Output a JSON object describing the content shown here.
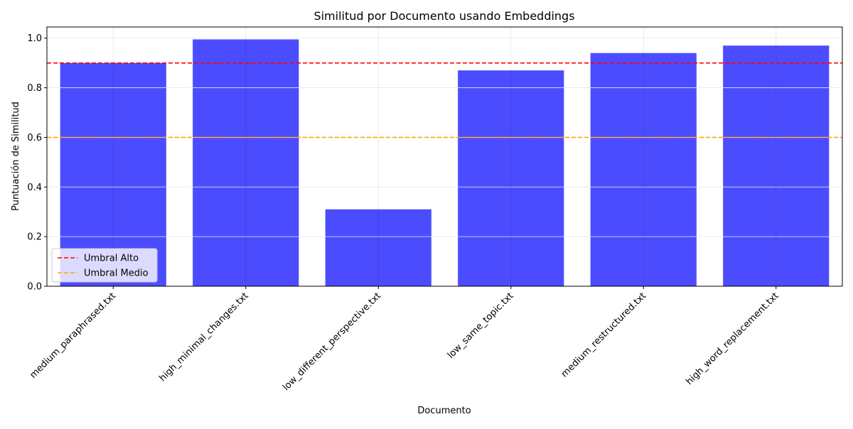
{
  "chart_data": {
    "type": "bar",
    "title": "Similitud por Documento usando Embeddings",
    "xlabel": "Documento",
    "ylabel": "Puntuación de Similitud",
    "categories": [
      "medium_paraphrased.txt",
      "high_minimal_changes.txt",
      "low_different_perspective.txt",
      "low_same_topic.txt",
      "medium_restructured.txt",
      "high_word_replacement.txt"
    ],
    "values": [
      0.9,
      0.995,
      0.31,
      0.87,
      0.94,
      0.97
    ],
    "bar_color": "#4c4cff",
    "ylim": [
      0,
      1.045
    ],
    "yticks": [
      "0.0",
      "0.2",
      "0.4",
      "0.6",
      "0.8",
      "1.0"
    ],
    "grid": true,
    "reference_lines": [
      {
        "label": "Umbral Alto",
        "value": 0.9,
        "color": "#ff0000",
        "style": "dashed"
      },
      {
        "label": "Umbral Medio",
        "value": 0.6,
        "color": "#ffa500",
        "style": "dashed"
      }
    ],
    "legend_position": "lower-left"
  }
}
